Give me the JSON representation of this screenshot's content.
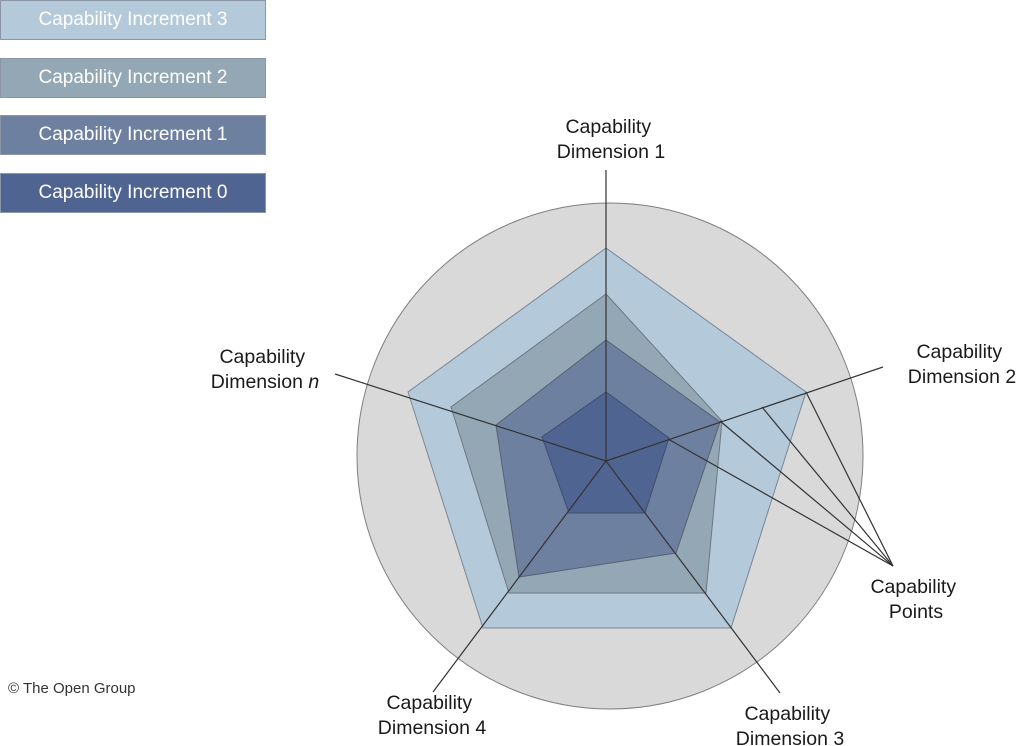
{
  "legend": [
    {
      "label": "Capability Increment 3",
      "color": "#b4c9da"
    },
    {
      "label": "Capability Increment 2",
      "color": "#93a7b4"
    },
    {
      "label": "Capability Increment 1",
      "color": "#6e809f"
    },
    {
      "label": "Capability Increment 0",
      "color": "#4f6491"
    }
  ],
  "dimensions": {
    "d1": {
      "line1": "Capability",
      "line2": "Dimension 1"
    },
    "d2": {
      "line1": "Capability",
      "line2": "Dimension 2"
    },
    "d3": {
      "line1": "Capability",
      "line2": "Dimension 3"
    },
    "d4": {
      "line1": "Capability",
      "line2": "Dimension 4"
    },
    "dn": {
      "line1": "Capability",
      "line2": "Dimension ",
      "italic": "n"
    }
  },
  "callout": {
    "line1": "Capability",
    "line2": "Points"
  },
  "copyright": "© The Open Group",
  "colors": {
    "circle_fill": "#d9d9d9",
    "circle_stroke": "#7f7f7f",
    "axis": "#333333"
  }
}
